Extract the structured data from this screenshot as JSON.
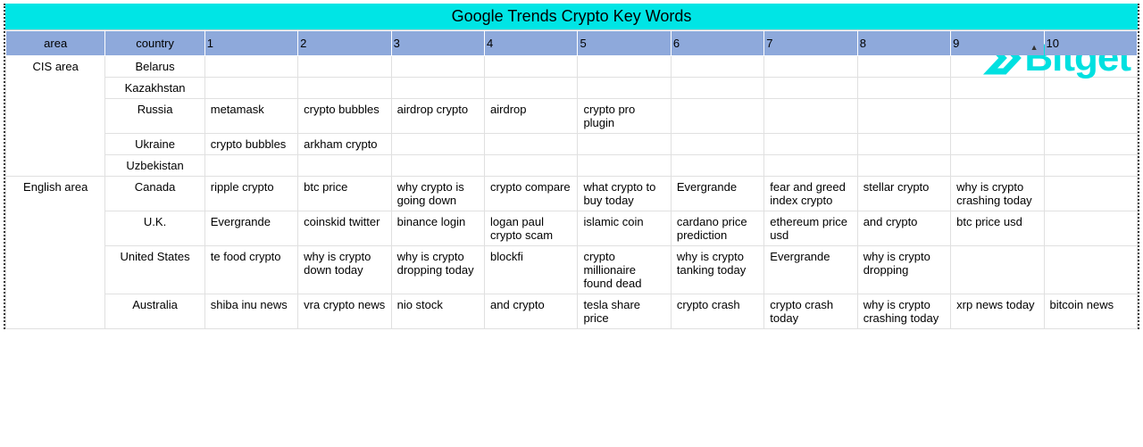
{
  "title": "Google Trends Crypto Key Words",
  "logo_text": "Bitget",
  "logo_color": "#00e0e0",
  "title_bg": "#00e5e5",
  "header_bg": "#8ea9db",
  "columns": [
    "area",
    "country",
    "1",
    "2",
    "3",
    "4",
    "5",
    "6",
    "7",
    "8",
    "9",
    "10"
  ],
  "sort_indicator_col": "9",
  "sort_indicator_glyph": "▲",
  "groups": [
    {
      "area": "CIS area",
      "rows": [
        {
          "country": "Belarus",
          "kw": [
            "",
            "",
            "",
            "",
            "",
            "",
            "",
            "",
            "",
            ""
          ]
        },
        {
          "country": "Kazakhstan",
          "kw": [
            "",
            "",
            "",
            "",
            "",
            "",
            "",
            "",
            "",
            ""
          ]
        },
        {
          "country": "Russia",
          "kw": [
            "metamask",
            "crypto bubbles",
            "airdrop crypto",
            "airdrop",
            "crypto pro plugin",
            "",
            "",
            "",
            "",
            ""
          ]
        },
        {
          "country": "Ukraine",
          "kw": [
            "crypto bubbles",
            "arkham crypto",
            "",
            "",
            "",
            "",
            "",
            "",
            "",
            ""
          ]
        },
        {
          "country": "Uzbekistan",
          "kw": [
            "",
            "",
            "",
            "",
            "",
            "",
            "",
            "",
            "",
            ""
          ]
        }
      ]
    },
    {
      "area": "English area",
      "rows": [
        {
          "country": "Canada",
          "kw": [
            "ripple crypto",
            "btc price",
            "why crypto is going down",
            "crypto compare",
            "what crypto to buy today",
            "Evergrande",
            "fear and greed index crypto",
            "stellar crypto",
            "why is crypto crashing today",
            ""
          ]
        },
        {
          "country": "U.K.",
          "kw": [
            "Evergrande",
            "coinskid twitter",
            "binance login",
            "logan paul crypto scam",
            "islamic coin",
            "cardano price prediction",
            "ethereum price usd",
            "and crypto",
            "btc price usd",
            ""
          ]
        },
        {
          "country": "United States",
          "kw": [
            "te food crypto",
            "why is crypto down today",
            "why is crypto dropping today",
            "blockfi",
            "crypto millionaire found dead",
            "why is crypto tanking today",
            "Evergrande",
            "why is crypto dropping",
            "",
            ""
          ]
        },
        {
          "country": "Australia",
          "kw": [
            "shiba inu news",
            "vra crypto news",
            "nio stock",
            "and crypto",
            "tesla share price",
            "crypto crash",
            "crypto crash today",
            "why is crypto crashing today",
            "xrp news today",
            "bitcoin news"
          ]
        }
      ]
    }
  ]
}
